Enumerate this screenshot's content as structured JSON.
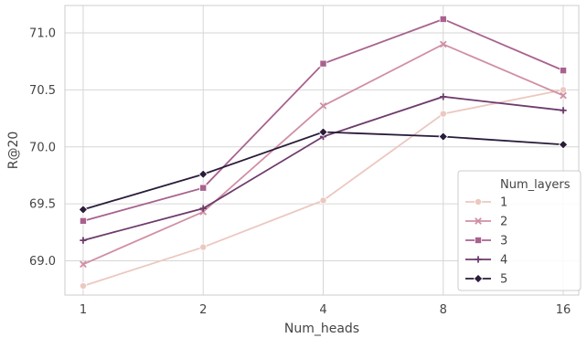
{
  "chart_data": {
    "type": "line",
    "title": "",
    "xlabel": "Num_heads",
    "ylabel": "R@20",
    "x": [
      1,
      2,
      4,
      8,
      16
    ],
    "xscale": "log2",
    "xlim": [
      0.9,
      17.5
    ],
    "ylim": [
      68.7,
      71.24
    ],
    "yticks": [
      69.0,
      69.5,
      70.0,
      70.5,
      71.0
    ],
    "ytick_labels": [
      "69.0",
      "69.5",
      "70.0",
      "70.5",
      "71.0"
    ],
    "xtick_labels": [
      "1",
      "2",
      "4",
      "8",
      "16"
    ],
    "grid": true,
    "legend": {
      "title": "Num_layers",
      "placement": "lower-right"
    },
    "series": [
      {
        "name": "1",
        "values": [
          68.78,
          69.12,
          69.53,
          70.29,
          70.5
        ],
        "color": "#ebc8c0",
        "marker": "circle"
      },
      {
        "name": "2",
        "values": [
          68.97,
          69.43,
          70.36,
          70.9,
          70.45
        ],
        "color": "#d08fa3",
        "marker": "x"
      },
      {
        "name": "3",
        "values": [
          69.35,
          69.64,
          70.73,
          71.12,
          70.67
        ],
        "color": "#a8628e",
        "marker": "square"
      },
      {
        "name": "4",
        "values": [
          69.18,
          69.46,
          70.09,
          70.44,
          70.32
        ],
        "color": "#6d3b6c",
        "marker": "plus"
      },
      {
        "name": "5",
        "values": [
          69.45,
          69.76,
          70.13,
          70.09,
          70.02
        ],
        "color": "#2a1c3a",
        "marker": "diamond"
      }
    ]
  }
}
